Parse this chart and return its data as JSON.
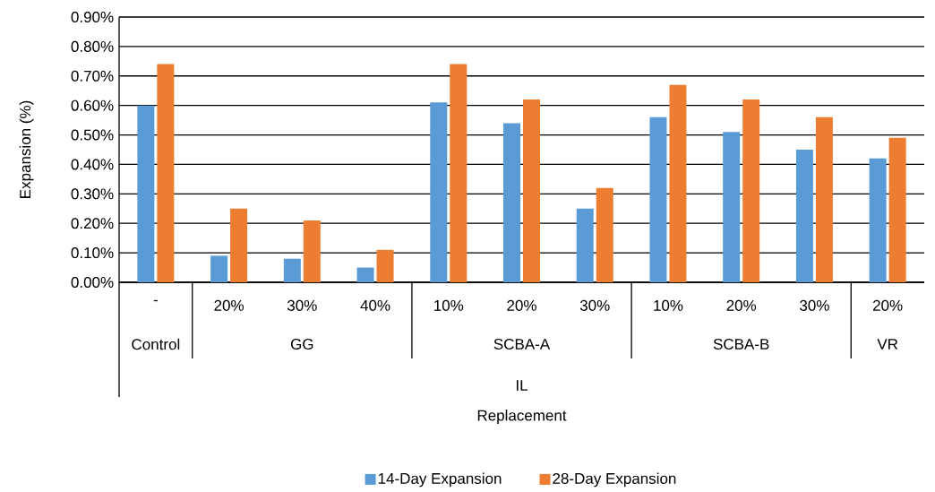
{
  "chart_data": {
    "type": "bar",
    "ylabel": "Expansion (%)",
    "categories": [
      "-",
      "20%",
      "30%",
      "40%",
      "10%",
      "20%",
      "30%",
      "10%",
      "20%",
      "30%",
      "20%"
    ],
    "series": [
      {
        "name": "14-Day Expansion",
        "color": "#5b9bd5",
        "values": [
          0.6,
          0.09,
          0.08,
          0.05,
          0.61,
          0.54,
          0.25,
          0.56,
          0.51,
          0.45,
          0.42
        ]
      },
      {
        "name": "28-Day Expansion",
        "color": "#ed7d31",
        "values": [
          0.74,
          0.25,
          0.21,
          0.11,
          0.74,
          0.62,
          0.32,
          0.67,
          0.62,
          0.56,
          0.49
        ]
      }
    ],
    "annotations": [
      "Control",
      "GG",
      "SCBA-A",
      "SCBA-B",
      "VR",
      "IL",
      "Replacement"
    ],
    "ylim": [
      0,
      0.9
    ],
    "yticks": [
      {
        "value": 0,
        "label": "0.00%"
      },
      {
        "value": 0.1,
        "label": "0.10%"
      },
      {
        "value": 0.2,
        "label": "0.20%"
      },
      {
        "value": 0.3,
        "label": "0.30%"
      },
      {
        "value": 0.4,
        "label": "0.40%"
      },
      {
        "value": 0.5,
        "label": "0.50%"
      },
      {
        "value": 0.6,
        "label": "0.60%"
      },
      {
        "value": 0.7,
        "label": "0.70%"
      },
      {
        "value": 0.8,
        "label": "0.80%"
      },
      {
        "value": 0.9,
        "label": "0.90%"
      }
    ],
    "grid": "y",
    "legend": "bottom"
  }
}
